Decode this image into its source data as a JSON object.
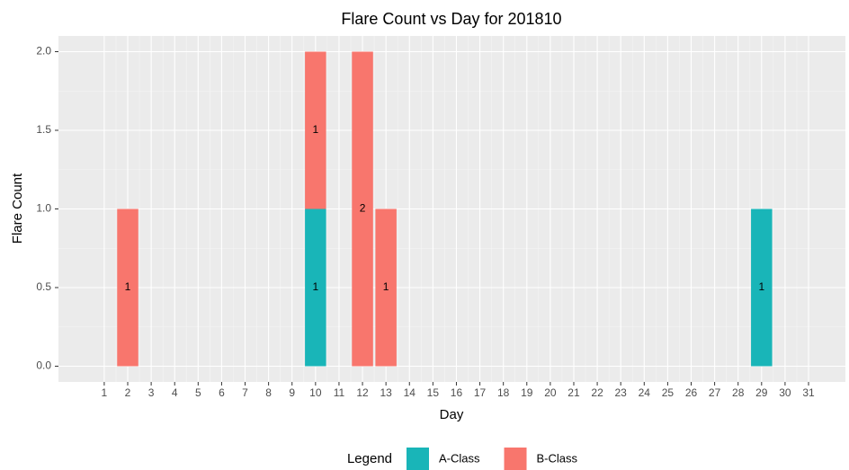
{
  "chart_data": {
    "type": "stacked-bar",
    "title": "Flare Count vs Day for 201810",
    "x_label": "Day",
    "y_label": "Flare Count",
    "x": [
      2,
      10,
      12,
      13,
      29
    ],
    "series": [
      {
        "name": "A-Class",
        "color": "#19b5b8",
        "values": [
          null,
          1,
          null,
          null,
          1
        ]
      },
      {
        "name": "B-Class",
        "color": "#f8766d",
        "values": [
          1,
          1,
          2,
          1,
          null
        ]
      }
    ],
    "xlim": [
      -0.95,
      32.57
    ],
    "xticks": [
      1,
      2,
      3,
      4,
      5,
      6,
      7,
      8,
      9,
      10,
      11,
      12,
      13,
      14,
      15,
      16,
      17,
      18,
      19,
      20,
      21,
      22,
      23,
      24,
      25,
      26,
      27,
      28,
      29,
      30,
      31
    ],
    "ylim": [
      -0.1,
      2.1
    ],
    "yticks": [
      {
        "value": 0,
        "label": "0.0"
      },
      {
        "value": 0.5,
        "label": "0.5"
      },
      {
        "value": 1,
        "label": "1.0"
      },
      {
        "value": 1.5,
        "label": "1.5"
      },
      {
        "value": 2,
        "label": "2.0"
      }
    ],
    "legend_title": "Legend",
    "legend_position": "bottom",
    "grid": true
  }
}
